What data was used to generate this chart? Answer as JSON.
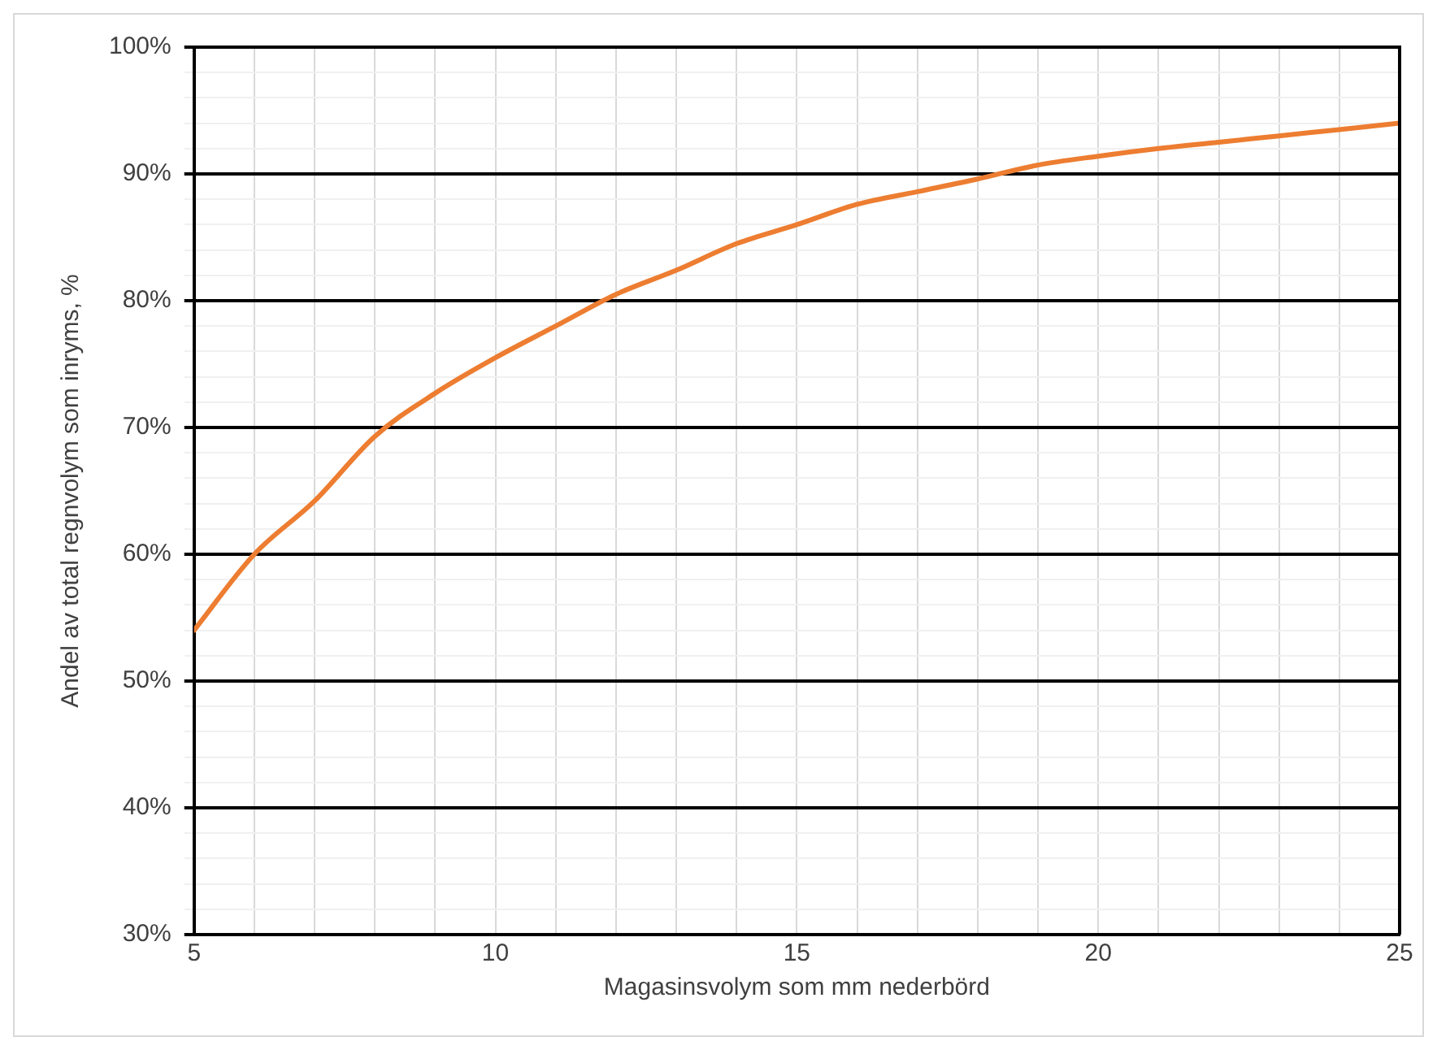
{
  "chart_data": {
    "type": "line",
    "xlabel": "Magasinsvolym som mm nederbörd",
    "ylabel": "Andel av total regnvolym som inryms, %",
    "x": [
      5,
      6,
      7,
      8,
      9,
      10,
      11,
      12,
      13,
      14,
      15,
      16,
      17,
      18,
      19,
      20,
      21,
      22,
      23,
      24,
      25
    ],
    "series": [
      {
        "color": "#ed7d31",
        "values": [
          54,
          60,
          64.2,
          69.3,
          72.7,
          75.5,
          78,
          80.5,
          82.4,
          84.5,
          86,
          87.6,
          88.6,
          89.6,
          90.7,
          91.4,
          92,
          92.5,
          93,
          93.5,
          94
        ]
      }
    ],
    "xlim": [
      5,
      25
    ],
    "xticks": [
      5,
      {
        "value": 6,
        "label": null
      },
      {
        "value": 7,
        "label": null
      },
      {
        "value": 8,
        "label": null
      },
      {
        "value": 9,
        "label": null
      },
      10,
      {
        "value": 11,
        "label": null
      },
      {
        "value": 12,
        "label": null
      },
      {
        "value": 13,
        "label": null
      },
      {
        "value": 14,
        "label": null
      },
      15,
      {
        "value": 16,
        "label": null
      },
      {
        "value": 17,
        "label": null
      },
      {
        "value": 18,
        "label": null
      },
      {
        "value": 19,
        "label": null
      },
      20,
      {
        "value": 21,
        "label": null
      },
      {
        "value": 22,
        "label": null
      },
      {
        "value": 23,
        "label": null
      },
      {
        "value": 24,
        "label": null
      },
      25
    ],
    "ylim": [
      30,
      100
    ],
    "yticks": [
      {
        "value": 30,
        "label": "30%"
      },
      {
        "value": 32,
        "label": null
      },
      {
        "value": 34,
        "label": null
      },
      {
        "value": 36,
        "label": null
      },
      {
        "value": 38,
        "label": null
      },
      {
        "value": 40,
        "label": "40%"
      },
      {
        "value": 42,
        "label": null
      },
      {
        "value": 44,
        "label": null
      },
      {
        "value": 46,
        "label": null
      },
      {
        "value": 48,
        "label": null
      },
      {
        "value": 50,
        "label": "50%"
      },
      {
        "value": 52,
        "label": null
      },
      {
        "value": 54,
        "label": null
      },
      {
        "value": 56,
        "label": null
      },
      {
        "value": 58,
        "label": null
      },
      {
        "value": 60,
        "label": "60%"
      },
      {
        "value": 62,
        "label": null
      },
      {
        "value": 64,
        "label": null
      },
      {
        "value": 66,
        "label": null
      },
      {
        "value": 68,
        "label": null
      },
      {
        "value": 70,
        "label": "70%"
      },
      {
        "value": 72,
        "label": null
      },
      {
        "value": 74,
        "label": null
      },
      {
        "value": 76,
        "label": null
      },
      {
        "value": 78,
        "label": null
      },
      {
        "value": 80,
        "label": "80%"
      },
      {
        "value": 82,
        "label": null
      },
      {
        "value": 84,
        "label": null
      },
      {
        "value": 86,
        "label": null
      },
      {
        "value": 88,
        "label": null
      },
      {
        "value": 90,
        "label": "90%"
      },
      {
        "value": 92,
        "label": null
      },
      {
        "value": 94,
        "label": null
      },
      {
        "value": 96,
        "label": null
      },
      {
        "value": 98,
        "label": null
      },
      {
        "value": 100,
        "label": "100%"
      }
    ],
    "grid": true,
    "marker": "none",
    "line_style": "solid"
  }
}
